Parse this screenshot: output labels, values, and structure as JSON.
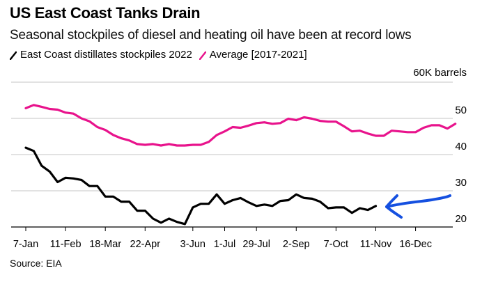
{
  "title": "US East Coast Tanks Drain",
  "subtitle": "Seasonal stockpiles of diesel and heating oil have been at record lows",
  "source": "Source: EIA",
  "colors": {
    "series_2022": "#000000",
    "series_avg": "#e8138c",
    "annotation_arrow": "#1550e0",
    "grid": "#d9d9d9"
  },
  "chart_data": {
    "type": "line",
    "title": "US East Coast Tanks Drain",
    "subtitle": "Seasonal stockpiles of diesel and heating oil have been at record lows",
    "xlabel": "",
    "ylabel": "60K barrels",
    "ylim": [
      20,
      60
    ],
    "yticks": [
      20,
      30,
      40,
      50
    ],
    "ytick_labels": [
      "20",
      "30",
      "40",
      "50"
    ],
    "grid": true,
    "legend_placement": "top-left",
    "x_tick_labels": [
      "7-Jan",
      "11-Feb",
      "18-Mar",
      "22-Apr",
      "3-Jun",
      "1-Jul",
      "29-Jul",
      "2-Sep",
      "7-Oct",
      "11-Nov",
      "16-Dec"
    ],
    "x_tick_weeks": [
      0,
      5,
      10,
      15,
      21,
      25,
      29,
      34,
      39,
      44,
      49
    ],
    "x_unit": "weeks since 7-Jan",
    "series": [
      {
        "name": "East Coast distillates stockpiles 2022",
        "color": "#000000",
        "values": [
          41.9,
          41.0,
          36.9,
          35.3,
          32.4,
          33.6,
          33.4,
          33.0,
          31.3,
          31.3,
          28.4,
          28.4,
          27.0,
          27.0,
          24.5,
          24.5,
          22.3,
          21.2,
          22.3,
          21.4,
          20.8,
          25.4,
          26.4,
          26.4,
          29.0,
          26.4,
          27.4,
          28.0,
          26.8,
          25.8,
          26.2,
          25.8,
          27.2,
          27.4,
          29.0,
          28.0,
          27.8,
          27.0,
          25.2,
          25.4,
          25.4,
          23.9,
          25.2,
          24.7,
          25.8
        ]
      },
      {
        "name": "Average [2017-2021]",
        "color": "#e8138c",
        "values": [
          52.8,
          53.7,
          53.2,
          52.6,
          52.4,
          51.6,
          51.3,
          50.0,
          49.2,
          47.6,
          46.8,
          45.4,
          44.5,
          43.9,
          42.9,
          42.7,
          42.9,
          42.5,
          42.9,
          42.5,
          42.5,
          42.7,
          42.7,
          43.5,
          45.4,
          46.4,
          47.6,
          47.4,
          48.0,
          48.7,
          48.9,
          48.5,
          48.7,
          49.9,
          49.5,
          50.3,
          49.9,
          49.3,
          49.1,
          49.1,
          47.8,
          46.4,
          46.6,
          45.8,
          45.2,
          45.2,
          46.6,
          46.4,
          46.2,
          46.2,
          47.4,
          48.1,
          48.1,
          47.2,
          48.5
        ]
      }
    ],
    "annotations": [
      {
        "type": "hand-drawn-arrow",
        "color": "#1550e0",
        "points_to": "latest 2022 value (11-Nov)"
      }
    ]
  }
}
